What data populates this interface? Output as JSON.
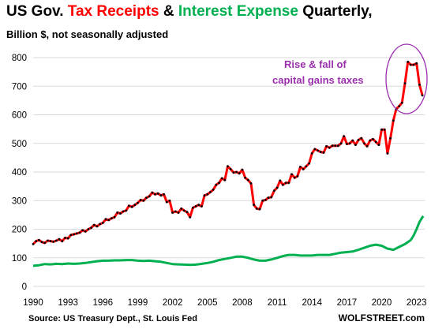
{
  "header": {
    "title_part1": "US Gov. ",
    "title_part2": "Tax Receipts",
    "title_part3": " & ",
    "title_part4": "Interest Expense",
    "title_part5": " Quarterly,",
    "subtitle": "Billion $, not seasonally adjusted"
  },
  "footer": {
    "source": "Source: US Treasury Dept., St. Louis Fed",
    "brand": "WOLFSTREET.com"
  },
  "annotation": {
    "line1": "Rise & fall of",
    "line2": "capital gains taxes"
  },
  "colors": {
    "tax_line": "#ff0000",
    "tax_markers": "#000000",
    "interest_line": "#00b050",
    "annotation": "#9b2fae",
    "grid": "#d9d9d9"
  },
  "chart_data": {
    "type": "line",
    "title": "US Gov. Tax Receipts & Interest Expense Quarterly,",
    "subtitle": "Billion $, not seasonally adjusted",
    "xlabel": "",
    "ylabel": "",
    "xlim": [
      1990,
      2023.7
    ],
    "ylim": [
      0,
      800
    ],
    "yticks": [
      0,
      100,
      200,
      300,
      400,
      500,
      600,
      700,
      800
    ],
    "xticks": [
      "1990",
      "1993",
      "1996",
      "1999",
      "2002",
      "2005",
      "2008",
      "2011",
      "2014",
      "2017",
      "2020",
      "2023"
    ],
    "grid": true,
    "series": [
      {
        "name": "Tax Receipts",
        "color": "#ff0000",
        "markers": true,
        "points": [
          [
            1990.0,
            148
          ],
          [
            1990.25,
            158
          ],
          [
            1990.5,
            162
          ],
          [
            1990.75,
            155
          ],
          [
            1991.0,
            152
          ],
          [
            1991.25,
            160
          ],
          [
            1991.5,
            158
          ],
          [
            1991.75,
            156
          ],
          [
            1992.0,
            160
          ],
          [
            1992.25,
            165
          ],
          [
            1992.5,
            158
          ],
          [
            1992.75,
            170
          ],
          [
            1993.0,
            168
          ],
          [
            1993.25,
            180
          ],
          [
            1993.5,
            182
          ],
          [
            1993.75,
            185
          ],
          [
            1994.0,
            188
          ],
          [
            1994.25,
            196
          ],
          [
            1994.5,
            192
          ],
          [
            1994.75,
            200
          ],
          [
            1995.0,
            205
          ],
          [
            1995.25,
            215
          ],
          [
            1995.5,
            210
          ],
          [
            1995.75,
            218
          ],
          [
            1996.0,
            222
          ],
          [
            1996.25,
            235
          ],
          [
            1996.5,
            232
          ],
          [
            1996.75,
            238
          ],
          [
            1997.0,
            242
          ],
          [
            1997.25,
            258
          ],
          [
            1997.5,
            255
          ],
          [
            1997.75,
            262
          ],
          [
            1998.0,
            265
          ],
          [
            1998.25,
            282
          ],
          [
            1998.5,
            278
          ],
          [
            1998.75,
            285
          ],
          [
            1999.0,
            292
          ],
          [
            1999.25,
            302
          ],
          [
            1999.5,
            300
          ],
          [
            1999.75,
            310
          ],
          [
            2000.0,
            315
          ],
          [
            2000.25,
            328
          ],
          [
            2000.5,
            322
          ],
          [
            2000.75,
            325
          ],
          [
            2001.0,
            318
          ],
          [
            2001.25,
            322
          ],
          [
            2001.5,
            295
          ],
          [
            2001.75,
            300
          ],
          [
            2002.0,
            258
          ],
          [
            2002.25,
            262
          ],
          [
            2002.5,
            258
          ],
          [
            2002.75,
            272
          ],
          [
            2003.0,
            265
          ],
          [
            2003.25,
            260
          ],
          [
            2003.5,
            242
          ],
          [
            2003.75,
            275
          ],
          [
            2004.0,
            280
          ],
          [
            2004.25,
            285
          ],
          [
            2004.5,
            280
          ],
          [
            2004.75,
            318
          ],
          [
            2005.0,
            322
          ],
          [
            2005.25,
            330
          ],
          [
            2005.5,
            338
          ],
          [
            2005.75,
            355
          ],
          [
            2006.0,
            362
          ],
          [
            2006.25,
            378
          ],
          [
            2006.5,
            372
          ],
          [
            2006.75,
            420
          ],
          [
            2007.0,
            410
          ],
          [
            2007.25,
            398
          ],
          [
            2007.5,
            400
          ],
          [
            2007.75,
            395
          ],
          [
            2008.0,
            408
          ],
          [
            2008.25,
            380
          ],
          [
            2008.5,
            372
          ],
          [
            2008.75,
            360
          ],
          [
            2009.0,
            285
          ],
          [
            2009.25,
            272
          ],
          [
            2009.5,
            270
          ],
          [
            2009.75,
            300
          ],
          [
            2010.0,
            302
          ],
          [
            2010.25,
            310
          ],
          [
            2010.5,
            312
          ],
          [
            2010.75,
            335
          ],
          [
            2011.0,
            345
          ],
          [
            2011.25,
            370
          ],
          [
            2011.5,
            355
          ],
          [
            2011.75,
            362
          ],
          [
            2012.0,
            362
          ],
          [
            2012.25,
            392
          ],
          [
            2012.5,
            380
          ],
          [
            2012.75,
            385
          ],
          [
            2013.0,
            418
          ],
          [
            2013.25,
            410
          ],
          [
            2013.5,
            420
          ],
          [
            2013.75,
            430
          ],
          [
            2014.0,
            465
          ],
          [
            2014.25,
            480
          ],
          [
            2014.5,
            475
          ],
          [
            2014.75,
            470
          ],
          [
            2015.0,
            468
          ],
          [
            2015.25,
            490
          ],
          [
            2015.5,
            485
          ],
          [
            2015.75,
            492
          ],
          [
            2016.0,
            492
          ],
          [
            2016.25,
            492
          ],
          [
            2016.5,
            500
          ],
          [
            2016.75,
            525
          ],
          [
            2017.0,
            498
          ],
          [
            2017.25,
            500
          ],
          [
            2017.5,
            510
          ],
          [
            2017.75,
            495
          ],
          [
            2018.0,
            512
          ],
          [
            2018.25,
            518
          ],
          [
            2018.5,
            500
          ],
          [
            2018.75,
            490
          ],
          [
            2019.0,
            510
          ],
          [
            2019.25,
            515
          ],
          [
            2019.5,
            505
          ],
          [
            2019.75,
            495
          ],
          [
            2020.0,
            548
          ],
          [
            2020.25,
            548
          ],
          [
            2020.5,
            465
          ],
          [
            2020.75,
            518
          ],
          [
            2021.0,
            580
          ],
          [
            2021.25,
            620
          ],
          [
            2021.5,
            630
          ],
          [
            2021.75,
            642
          ],
          [
            2022.0,
            710
          ],
          [
            2022.25,
            785
          ],
          [
            2022.5,
            775
          ],
          [
            2022.75,
            775
          ],
          [
            2023.0,
            780
          ],
          [
            2023.25,
            705
          ],
          [
            2023.5,
            668
          ]
        ]
      },
      {
        "name": "Interest Expense",
        "color": "#00b050",
        "markers": false,
        "points": [
          [
            1990.0,
            72
          ],
          [
            1990.5,
            74
          ],
          [
            1991.0,
            78
          ],
          [
            1991.5,
            77
          ],
          [
            1992.0,
            79
          ],
          [
            1992.5,
            78
          ],
          [
            1993.0,
            80
          ],
          [
            1993.5,
            79
          ],
          [
            1994.0,
            80
          ],
          [
            1994.5,
            82
          ],
          [
            1995.0,
            85
          ],
          [
            1995.5,
            88
          ],
          [
            1996.0,
            90
          ],
          [
            1996.5,
            90
          ],
          [
            1997.0,
            91
          ],
          [
            1997.5,
            91
          ],
          [
            1998.0,
            92
          ],
          [
            1998.5,
            92
          ],
          [
            1999.0,
            90
          ],
          [
            1999.5,
            89
          ],
          [
            2000.0,
            90
          ],
          [
            2000.5,
            88
          ],
          [
            2001.0,
            86
          ],
          [
            2001.5,
            82
          ],
          [
            2002.0,
            78
          ],
          [
            2002.5,
            77
          ],
          [
            2003.0,
            76
          ],
          [
            2003.5,
            75
          ],
          [
            2004.0,
            76
          ],
          [
            2004.5,
            79
          ],
          [
            2005.0,
            82
          ],
          [
            2005.5,
            86
          ],
          [
            2006.0,
            92
          ],
          [
            2006.5,
            96
          ],
          [
            2007.0,
            100
          ],
          [
            2007.5,
            104
          ],
          [
            2008.0,
            104
          ],
          [
            2008.5,
            100
          ],
          [
            2009.0,
            94
          ],
          [
            2009.5,
            90
          ],
          [
            2010.0,
            90
          ],
          [
            2010.5,
            94
          ],
          [
            2011.0,
            100
          ],
          [
            2011.5,
            106
          ],
          [
            2012.0,
            110
          ],
          [
            2012.5,
            110
          ],
          [
            2013.0,
            108
          ],
          [
            2013.5,
            108
          ],
          [
            2014.0,
            108
          ],
          [
            2014.5,
            110
          ],
          [
            2015.0,
            110
          ],
          [
            2015.5,
            110
          ],
          [
            2016.0,
            114
          ],
          [
            2016.5,
            118
          ],
          [
            2017.0,
            120
          ],
          [
            2017.5,
            122
          ],
          [
            2018.0,
            128
          ],
          [
            2018.5,
            135
          ],
          [
            2019.0,
            142
          ],
          [
            2019.5,
            146
          ],
          [
            2020.0,
            142
          ],
          [
            2020.5,
            132
          ],
          [
            2021.0,
            128
          ],
          [
            2021.5,
            138
          ],
          [
            2022.0,
            148
          ],
          [
            2022.5,
            162
          ],
          [
            2022.75,
            178
          ],
          [
            2023.0,
            200
          ],
          [
            2023.25,
            225
          ],
          [
            2023.5,
            242
          ],
          [
            2023.6,
            245
          ]
        ]
      }
    ]
  }
}
